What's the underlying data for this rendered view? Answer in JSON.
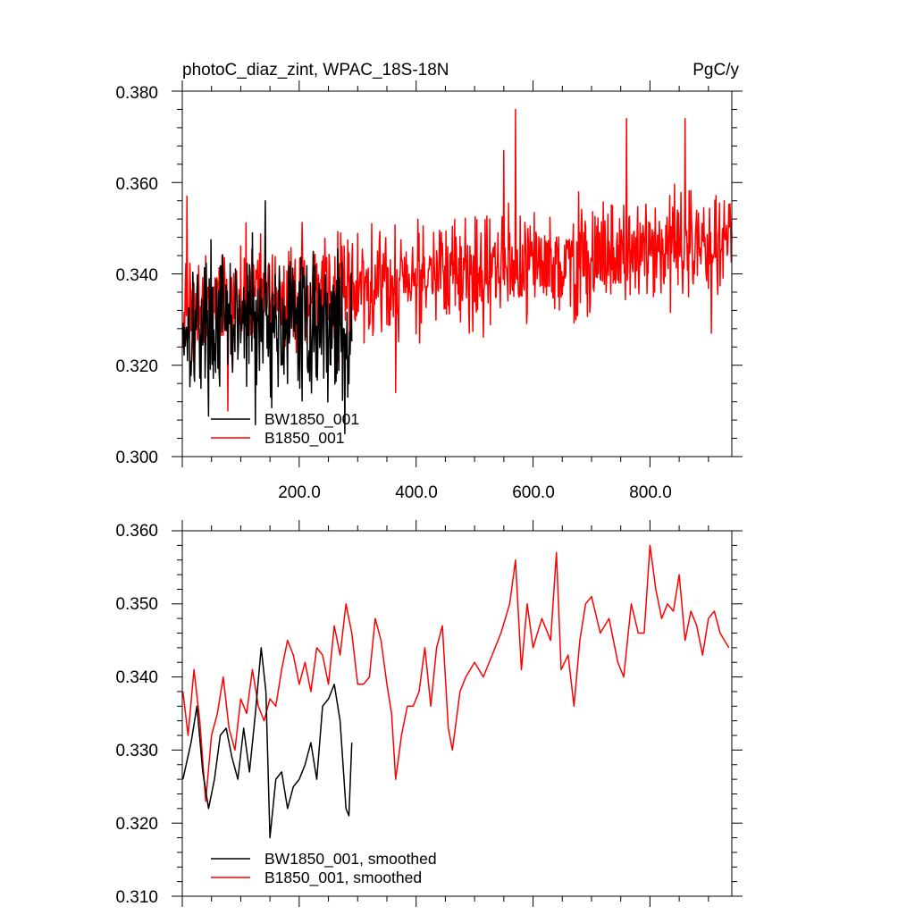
{
  "chart_data": [
    {
      "type": "line",
      "title": "photoC_diaz_zint, WPAC_18S-18N",
      "units": "PgC/y",
      "xlim": [
        0,
        940
      ],
      "ylim": [
        0.3,
        0.38
      ],
      "yticks": [
        "0.300",
        "0.320",
        "0.340",
        "0.360",
        "0.380"
      ],
      "xticks": [
        "200.0",
        "400.0",
        "600.0",
        "800.0"
      ],
      "legend_placement": "bottom-left",
      "series": [
        {
          "name": "BW1850_001",
          "color": "#000000",
          "x_start": 1,
          "x_end": 290,
          "y_range": [
            0.305,
            0.356
          ],
          "mean": 0.329,
          "amplitude": 0.0105,
          "seed": 17,
          "anchors": [
            [
              120,
              0.349
            ],
            [
              125,
              0.307
            ],
            [
              142,
              0.356
            ],
            [
              278,
              0.304
            ],
            [
              283,
              0.313
            ]
          ]
        },
        {
          "name": "B1850_001",
          "color": "#ff0000",
          "x_start": 1,
          "x_end": 940,
          "y_range": [
            0.309,
            0.376
          ],
          "mean_start": 0.333,
          "mean_end": 0.347,
          "amplitude": 0.0085,
          "seed": 91,
          "anchors": [
            [
              8,
              0.357
            ],
            [
              78,
              0.31
            ],
            [
              365,
              0.314
            ],
            [
              550,
              0.367
            ],
            [
              570,
              0.376
            ],
            [
              760,
              0.374
            ],
            [
              860,
              0.374
            ],
            [
              905,
              0.327
            ]
          ]
        }
      ]
    },
    {
      "type": "line",
      "title": "",
      "xlim": [
        0,
        940
      ],
      "ylim": [
        0.31,
        0.36
      ],
      "yticks": [
        "0.310",
        "0.320",
        "0.330",
        "0.340",
        "0.350",
        "0.360"
      ],
      "legend_placement": "bottom-left",
      "series": [
        {
          "name": "BW1850_001, smoothed",
          "color": "#000000",
          "points": [
            [
              1,
              0.326
            ],
            [
              15,
              0.331
            ],
            [
              25,
              0.336
            ],
            [
              35,
              0.327
            ],
            [
              45,
              0.322
            ],
            [
              55,
              0.326
            ],
            [
              65,
              0.332
            ],
            [
              75,
              0.333
            ],
            [
              85,
              0.329
            ],
            [
              95,
              0.326
            ],
            [
              105,
              0.333
            ],
            [
              115,
              0.327
            ],
            [
              125,
              0.335
            ],
            [
              135,
              0.344
            ],
            [
              143,
              0.338
            ],
            [
              150,
              0.318
            ],
            [
              160,
              0.326
            ],
            [
              170,
              0.327
            ],
            [
              180,
              0.322
            ],
            [
              190,
              0.325
            ],
            [
              200,
              0.326
            ],
            [
              210,
              0.328
            ],
            [
              220,
              0.331
            ],
            [
              230,
              0.326
            ],
            [
              240,
              0.336
            ],
            [
              250,
              0.337
            ],
            [
              260,
              0.339
            ],
            [
              270,
              0.334
            ],
            [
              280,
              0.322
            ],
            [
              285,
              0.321
            ],
            [
              290,
              0.331
            ]
          ]
        },
        {
          "name": "B1850_001, smoothed",
          "color": "#ff0000",
          "points": [
            [
              1,
              0.338
            ],
            [
              10,
              0.332
            ],
            [
              20,
              0.341
            ],
            [
              30,
              0.334
            ],
            [
              40,
              0.323
            ],
            [
              50,
              0.332
            ],
            [
              60,
              0.335
            ],
            [
              70,
              0.34
            ],
            [
              80,
              0.333
            ],
            [
              90,
              0.33
            ],
            [
              100,
              0.337
            ],
            [
              110,
              0.335
            ],
            [
              120,
              0.341
            ],
            [
              130,
              0.336
            ],
            [
              140,
              0.334
            ],
            [
              150,
              0.337
            ],
            [
              160,
              0.336
            ],
            [
              170,
              0.341
            ],
            [
              180,
              0.345
            ],
            [
              190,
              0.343
            ],
            [
              200,
              0.339
            ],
            [
              210,
              0.342
            ],
            [
              220,
              0.338
            ],
            [
              230,
              0.344
            ],
            [
              240,
              0.343
            ],
            [
              250,
              0.339
            ],
            [
              260,
              0.347
            ],
            [
              270,
              0.343
            ],
            [
              280,
              0.35
            ],
            [
              290,
              0.346
            ],
            [
              300,
              0.339
            ],
            [
              310,
              0.339
            ],
            [
              320,
              0.34
            ],
            [
              330,
              0.348
            ],
            [
              340,
              0.345
            ],
            [
              350,
              0.339
            ],
            [
              358,
              0.335
            ],
            [
              365,
              0.326
            ],
            [
              375,
              0.332
            ],
            [
              385,
              0.336
            ],
            [
              395,
              0.336
            ],
            [
              405,
              0.338
            ],
            [
              415,
              0.344
            ],
            [
              425,
              0.336
            ],
            [
              435,
              0.344
            ],
            [
              445,
              0.347
            ],
            [
              455,
              0.333
            ],
            [
              462,
              0.33
            ],
            [
              475,
              0.338
            ],
            [
              485,
              0.34
            ],
            [
              500,
              0.342
            ],
            [
              515,
              0.34
            ],
            [
              530,
              0.343
            ],
            [
              545,
              0.346
            ],
            [
              560,
              0.35
            ],
            [
              570,
              0.356
            ],
            [
              580,
              0.341
            ],
            [
              590,
              0.35
            ],
            [
              600,
              0.344
            ],
            [
              615,
              0.348
            ],
            [
              630,
              0.345
            ],
            [
              640,
              0.357
            ],
            [
              648,
              0.341
            ],
            [
              660,
              0.343
            ],
            [
              670,
              0.336
            ],
            [
              680,
              0.345
            ],
            [
              690,
              0.35
            ],
            [
              700,
              0.351
            ],
            [
              715,
              0.346
            ],
            [
              730,
              0.348
            ],
            [
              745,
              0.342
            ],
            [
              755,
              0.34
            ],
            [
              768,
              0.35
            ],
            [
              780,
              0.346
            ],
            [
              790,
              0.346
            ],
            [
              800,
              0.358
            ],
            [
              810,
              0.352
            ],
            [
              820,
              0.348
            ],
            [
              830,
              0.35
            ],
            [
              840,
              0.349
            ],
            [
              850,
              0.354
            ],
            [
              860,
              0.345
            ],
            [
              870,
              0.349
            ],
            [
              880,
              0.347
            ],
            [
              890,
              0.343
            ],
            [
              900,
              0.348
            ],
            [
              910,
              0.349
            ],
            [
              920,
              0.346
            ],
            [
              935,
              0.344
            ]
          ]
        }
      ]
    }
  ]
}
